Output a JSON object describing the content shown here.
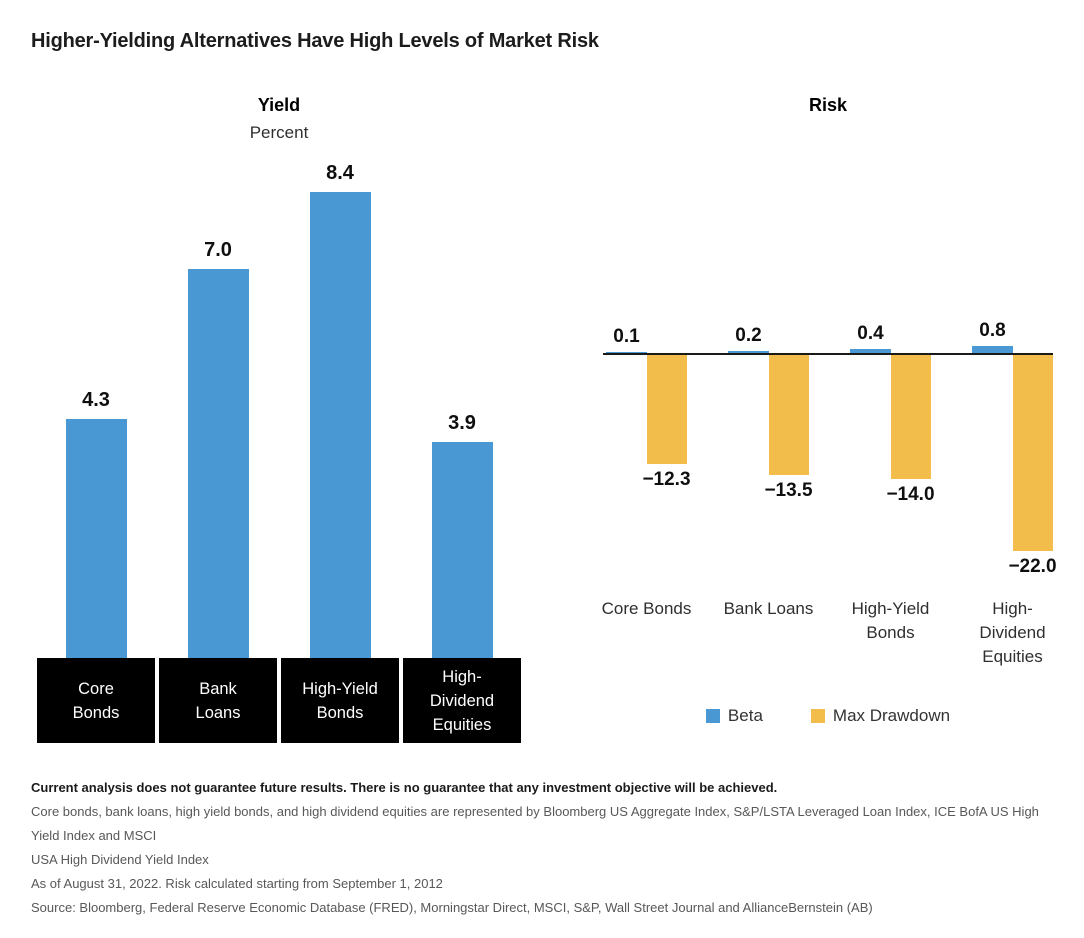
{
  "title": "Higher-Yielding Alternatives Have High Levels of Market Risk",
  "colors": {
    "beta_blue": "#4A98D3",
    "drawdown_yellow": "#F2BD4B",
    "category_box_black": "#000000"
  },
  "chart_data": [
    {
      "type": "bar",
      "title": "Yield",
      "subtitle": "Percent",
      "ylabel": "Percent",
      "categories": [
        "Core\nBonds",
        "Bank\nLoans",
        "High-Yield\nBonds",
        "High-\nDividend\nEquities"
      ],
      "values": [
        4.3,
        7.0,
        8.4,
        3.9
      ],
      "value_labels": [
        "4.3",
        "7.0",
        "8.4",
        "3.9"
      ],
      "bar_color": "#4A98D3",
      "ylim": [
        0,
        9
      ],
      "grid": false,
      "legend_position": "none"
    },
    {
      "type": "bar",
      "title": "Risk",
      "categories": [
        "Core Bonds",
        "Bank Loans",
        "High-Yield\nBonds",
        "High-\nDividend\nEquities"
      ],
      "series": [
        {
          "name": "Beta",
          "color": "#4A98D3",
          "values": [
            0.1,
            0.2,
            0.4,
            0.8
          ],
          "labels": [
            "0.1",
            "0.2",
            "0.4",
            "0.8"
          ]
        },
        {
          "name": "Max Drawdown",
          "color": "#F2BD4B",
          "values": [
            -12.3,
            -13.5,
            -14.0,
            -22.0
          ],
          "labels": [
            "−12.3",
            "−13.5",
            "−14.0",
            "−22.0"
          ]
        }
      ],
      "ylim": [
        -24,
        2
      ],
      "baseline": 0,
      "grid": false,
      "legend_position": "bottom"
    }
  ],
  "footnotes": {
    "disclaimer": "Current analysis does not guarantee future results. There is no guarantee that any investment objective will be achieved.",
    "representation": "Core bonds, bank loans, high yield bonds, and high dividend equities are represented by Bloomberg US Aggregate Index, S&P/LSTA Leveraged Loan Index, ICE BofA US High Yield Index and MSCI\nUSA High Dividend Yield Index",
    "as_of": "As of August 31, 2022. Risk calculated starting from September 1, 2012",
    "source": "Source: Bloomberg, Federal Reserve Economic Database (FRED), Morningstar Direct, MSCI, S&P, Wall Street Journal and AllianceBernstein (AB)"
  }
}
